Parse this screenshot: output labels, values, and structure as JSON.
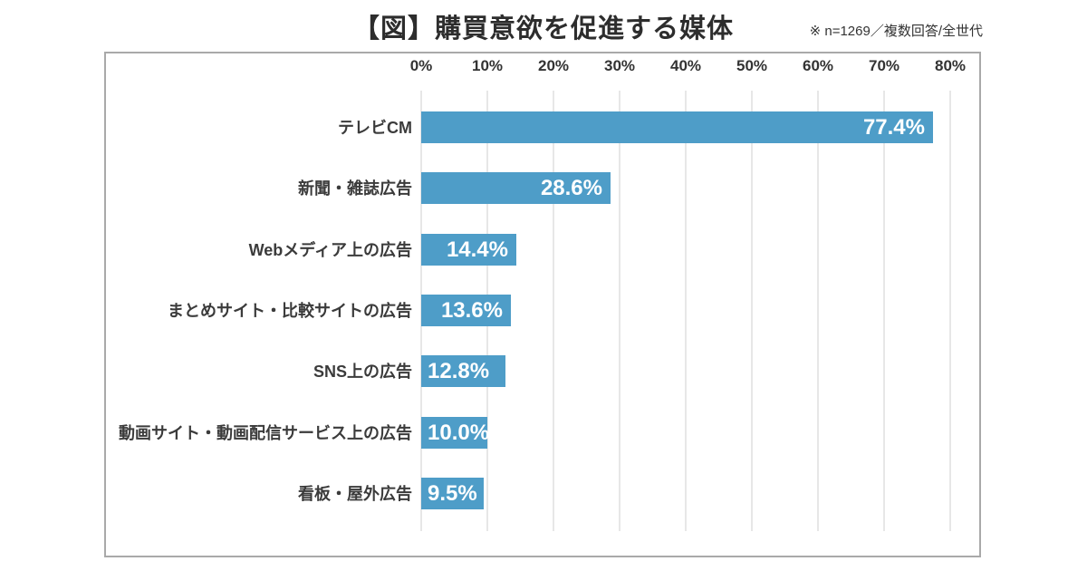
{
  "header": {
    "title": "【図】購買意欲を促進する媒体",
    "note": "※ n=1269／複数回答/全世代"
  },
  "chart_data": {
    "type": "bar",
    "orientation": "horizontal",
    "title": "【図】購買意欲を促進する媒体",
    "subtitle_note": "※ n=1269／複数回答/全世代",
    "categories": [
      "テレビCM",
      "新聞・雑誌広告",
      "Webメディア上の広告",
      "まとめサイト・比較サイトの広告",
      "SNS上の広告",
      "動画サイト・動画配信サービス上の広告",
      "看板・屋外広告"
    ],
    "values": [
      77.4,
      28.6,
      14.4,
      13.6,
      12.8,
      10.0,
      9.5
    ],
    "value_labels": [
      "77.4%",
      "28.6%",
      "14.4%",
      "13.6%",
      "12.8%",
      "10.0%",
      "9.5%"
    ],
    "x_ticks": [
      "0%",
      "10%",
      "20%",
      "30%",
      "40%",
      "50%",
      "60%",
      "70%",
      "80%"
    ],
    "xlim": [
      0,
      80
    ],
    "grid": true,
    "legend": "none",
    "colors": {
      "bar": "#4e9dc8",
      "grid": "#e7e7e7",
      "frame_border": "#a9a9a9",
      "value_label": "#ffffff",
      "category_label": "#3b3b3b",
      "tick_label": "#333333",
      "title": "#2d2d2d"
    }
  }
}
